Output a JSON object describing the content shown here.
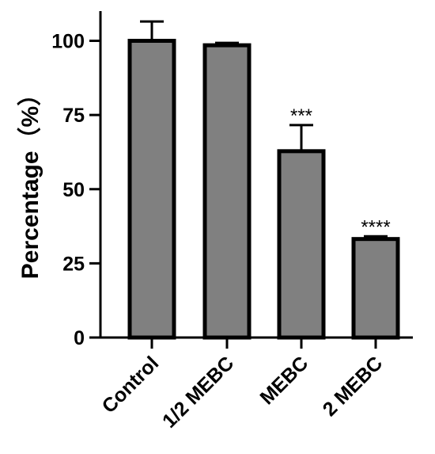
{
  "chart_data": {
    "type": "bar",
    "title": "",
    "xlabel": "",
    "ylabel": "Percentage（%）",
    "ylim": [
      0,
      110
    ],
    "yticks": [
      0,
      25,
      50,
      75,
      100
    ],
    "categories": [
      "Control",
      "1/2 MEBC",
      "MEBC",
      "2 MEBC"
    ],
    "values": [
      100,
      98.5,
      62.8,
      33.2
    ],
    "errors": [
      6.5,
      0.8,
      8.8,
      0.9
    ],
    "significance": [
      "",
      "",
      "***",
      "****"
    ],
    "grid": false,
    "legend": "none"
  },
  "colors": {
    "bar_fill": "#808080",
    "bar_stroke": "#000000",
    "axis": "#000000"
  }
}
